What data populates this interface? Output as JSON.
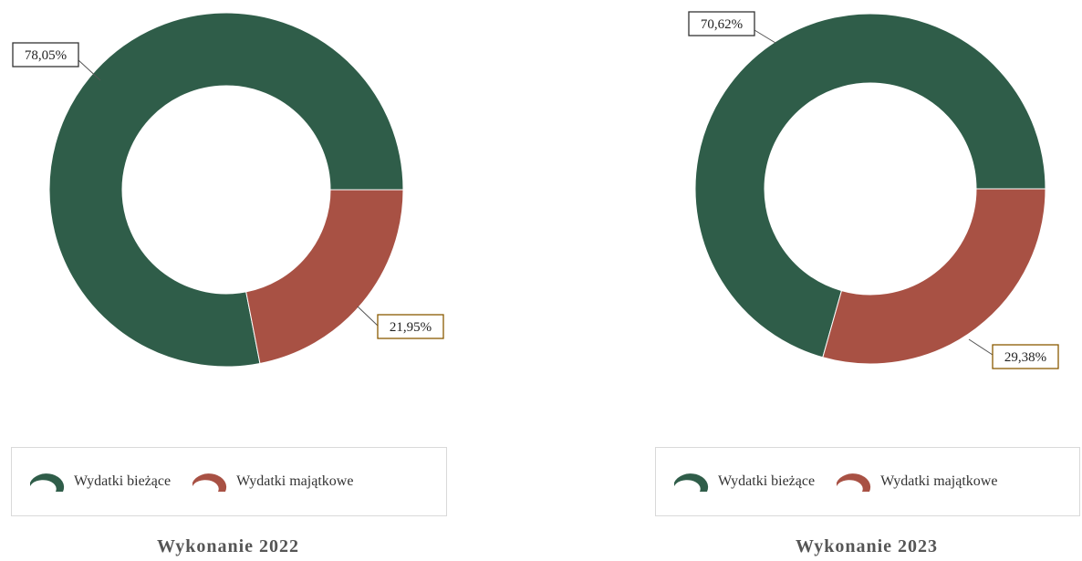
{
  "colors": {
    "current": "#2f5d49",
    "capital": "#a85144"
  },
  "chart_data": [
    {
      "type": "pie",
      "title": "Wykonanie 2022",
      "categories": [
        "Wydatki bieżące",
        "Wydatki majątkowe"
      ],
      "values": [
        78.05,
        21.95
      ],
      "data_labels": [
        "78,05%",
        "21,95%"
      ],
      "donut": true,
      "legend_position": "bottom"
    },
    {
      "type": "pie",
      "title": "Wykonanie 2023",
      "categories": [
        "Wydatki bieżące",
        "Wydatki majątkowe"
      ],
      "values": [
        70.62,
        29.38
      ],
      "data_labels": [
        "70,62%",
        "29,38%"
      ],
      "donut": true,
      "legend_position": "bottom"
    }
  ]
}
